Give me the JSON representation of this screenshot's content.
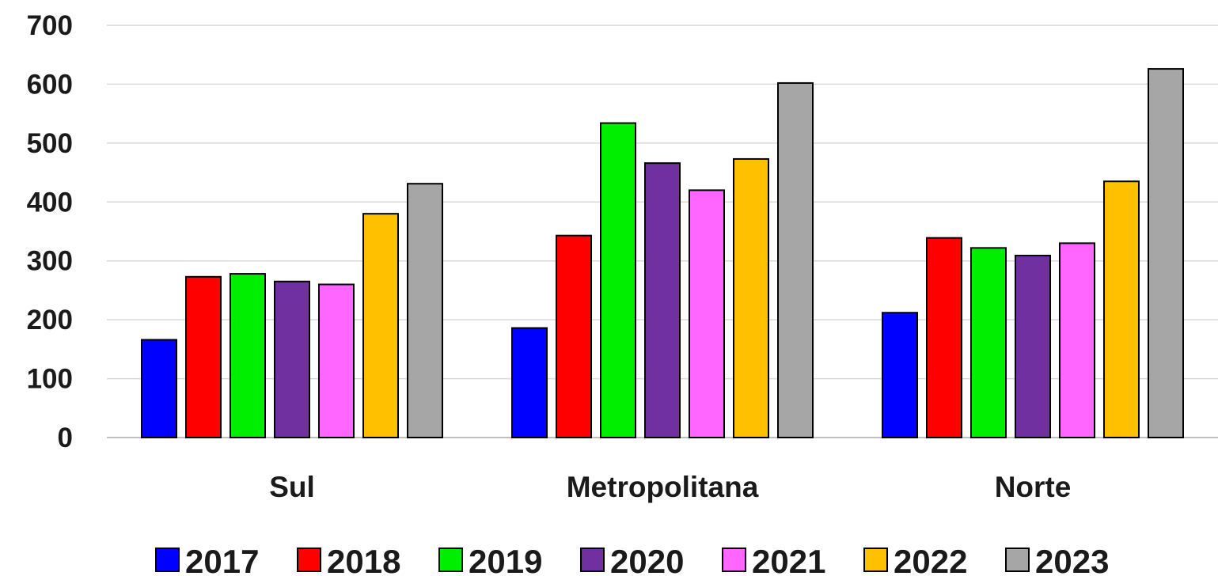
{
  "chart_data": {
    "type": "bar",
    "title": "",
    "xlabel": "",
    "ylabel": "",
    "ylim": [
      0,
      700
    ],
    "yticks": [
      0,
      100,
      200,
      300,
      400,
      500,
      600,
      700
    ],
    "grid": true,
    "legend_position": "bottom",
    "categories": [
      "Sul",
      "Metropolitana",
      "Norte"
    ],
    "series": [
      {
        "name": "2017",
        "color": "#0000ff",
        "values": [
          166,
          186,
          212
        ]
      },
      {
        "name": "2018",
        "color": "#ff0000",
        "values": [
          273,
          343,
          339
        ]
      },
      {
        "name": "2019",
        "color": "#00ee00",
        "values": [
          278,
          534,
          322
        ]
      },
      {
        "name": "2020",
        "color": "#7030a0",
        "values": [
          265,
          466,
          309
        ]
      },
      {
        "name": "2021",
        "color": "#ff66ff",
        "values": [
          260,
          420,
          330
        ]
      },
      {
        "name": "2022",
        "color": "#ffc000",
        "values": [
          380,
          473,
          435
        ]
      },
      {
        "name": "2023",
        "color": "#a6a6a6",
        "values": [
          431,
          602,
          626
        ]
      }
    ]
  }
}
